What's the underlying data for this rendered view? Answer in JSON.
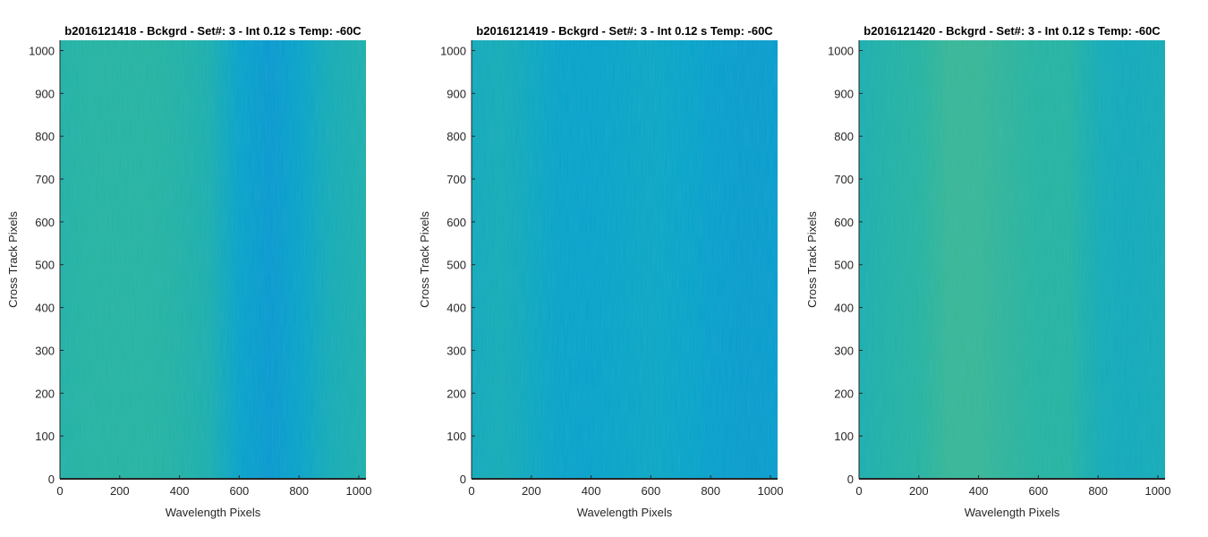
{
  "chart_data": [
    {
      "type": "heatmap",
      "title": "b2016121418 - Bckgrd - Set#: 3 - Int 0.12 s Temp: -60C",
      "xlabel": "Wavelength Pixels",
      "ylabel": "Cross Track Pixels",
      "xlim": [
        0,
        1024
      ],
      "ylim": [
        0,
        1024
      ],
      "xticks": [
        "0",
        "200",
        "400",
        "600",
        "800",
        "1000"
      ],
      "yticks": [
        "0",
        "100",
        "200",
        "300",
        "400",
        "500",
        "600",
        "700",
        "800",
        "900",
        "1000"
      ],
      "column_profile_x": [
        0,
        100,
        200,
        300,
        400,
        500,
        600,
        700,
        800,
        900,
        1024
      ],
      "column_profile_level": [
        0.58,
        0.6,
        0.6,
        0.6,
        0.58,
        0.55,
        0.44,
        0.38,
        0.44,
        0.52,
        0.56
      ],
      "grid": false,
      "colormap": "parula"
    },
    {
      "type": "heatmap",
      "title": "b2016121419 - Bckgrd - Set#: 3 - Int 0.12 s Temp: -60C",
      "xlabel": "Wavelength Pixels",
      "ylabel": "Cross Track Pixels",
      "xlim": [
        0,
        1024
      ],
      "ylim": [
        0,
        1024
      ],
      "xticks": [
        "0",
        "200",
        "400",
        "600",
        "800",
        "1000"
      ],
      "yticks": [
        "0",
        "100",
        "200",
        "300",
        "400",
        "500",
        "600",
        "700",
        "800",
        "900",
        "1000"
      ],
      "column_profile_x": [
        0,
        100,
        200,
        300,
        400,
        500,
        600,
        700,
        800,
        900,
        1024
      ],
      "column_profile_level": [
        0.5,
        0.52,
        0.48,
        0.44,
        0.43,
        0.45,
        0.47,
        0.45,
        0.42,
        0.4,
        0.4
      ],
      "grid": false,
      "colormap": "parula"
    },
    {
      "type": "heatmap",
      "title": "b2016121420 - Bckgrd - Set#: 3 - Int 0.12 s Temp: -60C",
      "xlabel": "Wavelength Pixels",
      "ylabel": "Cross Track Pixels",
      "xlim": [
        0,
        1024
      ],
      "ylim": [
        0,
        1024
      ],
      "xticks": [
        "0",
        "200",
        "400",
        "600",
        "800",
        "1000"
      ],
      "yticks": [
        "0",
        "100",
        "200",
        "300",
        "400",
        "500",
        "600",
        "700",
        "800",
        "900",
        "1000"
      ],
      "column_profile_x": [
        0,
        100,
        200,
        300,
        400,
        500,
        600,
        700,
        800,
        900,
        1024
      ],
      "column_profile_level": [
        0.55,
        0.58,
        0.6,
        0.64,
        0.64,
        0.62,
        0.6,
        0.6,
        0.52,
        0.5,
        0.52
      ],
      "grid": false,
      "colormap": "parula"
    }
  ]
}
